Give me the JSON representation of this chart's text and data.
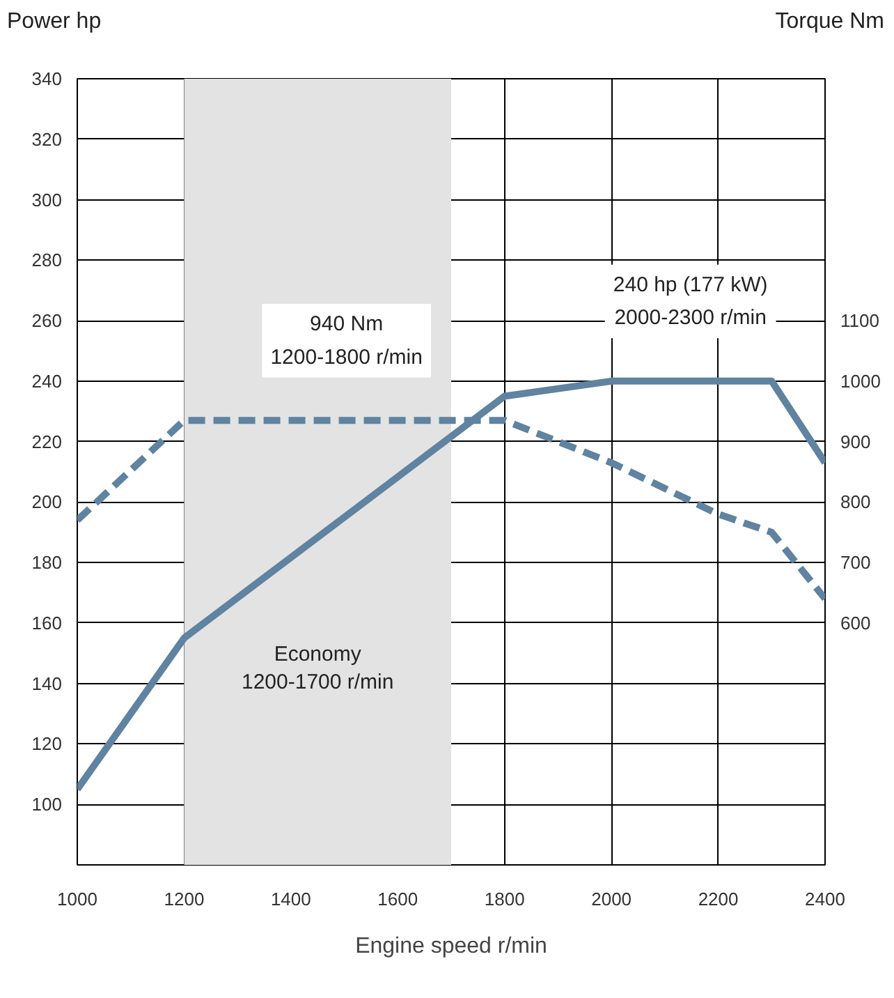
{
  "chart_data": {
    "type": "line",
    "ylabel": "Power hp",
    "y2label": "Torque Nm",
    "xlabel": "Engine speed r/min",
    "x": [
      1000,
      1200,
      1800,
      2000,
      2300,
      2400
    ],
    "series": [
      {
        "color": "#5f83a0",
        "values": [
          105,
          155,
          235,
          240,
          240,
          213
        ],
        "line_style": "solid"
      },
      {
        "color": "#5f83a0",
        "axis": "y2",
        "x": [
          1000,
          1200,
          1800,
          2000,
          2200,
          2300,
          2400
        ],
        "values": [
          770,
          935,
          935,
          865,
          780,
          750,
          640
        ],
        "line_style": "dashed"
      }
    ],
    "xlim": [
      1000,
      2400
    ],
    "xticks": [
      1000,
      1200,
      1400,
      1600,
      1800,
      2000,
      2200,
      2400
    ],
    "ylim": [
      80,
      340
    ],
    "yticks": [
      100,
      120,
      140,
      160,
      180,
      200,
      220,
      240,
      260,
      280,
      300,
      320,
      340
    ],
    "y2lim": [
      200,
      1500
    ],
    "y2ticks": [
      600,
      700,
      800,
      900,
      1000,
      1100
    ],
    "bands": [
      {
        "axis": "x",
        "from": 1200,
        "to": 1700,
        "label": "Economy\n1200-1700 r/min",
        "color": "#e3e3e3"
      }
    ],
    "annotations": [
      "940 Nm\n1200-1800 r/min",
      "240 hp (177 kW)\n2000-2300 r/min"
    ],
    "grid": true,
    "marker": "none"
  }
}
